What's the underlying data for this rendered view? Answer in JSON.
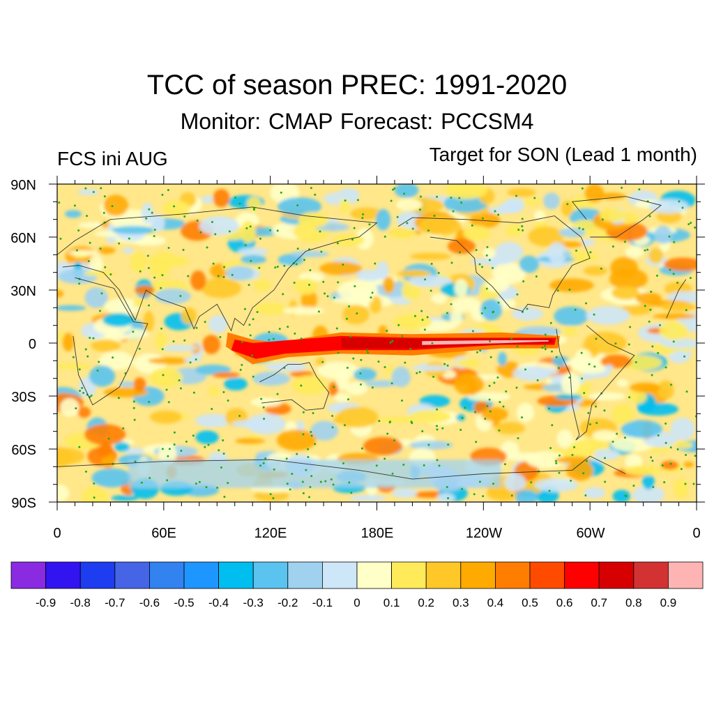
{
  "title": "TCC of season PREC: 1991-2020",
  "subtitle": "Monitor: CMAP   Forecast: PCCSM4",
  "left_label": "FCS ini AUG",
  "right_label": "Target for SON (Lead 1 month)",
  "lat_labels": [
    "90N",
    "60N",
    "30N",
    "0",
    "30S",
    "60S",
    "90S"
  ],
  "lon_labels": [
    "0",
    "60E",
    "120E",
    "180E",
    "120W",
    "60W",
    "0"
  ],
  "colorbar": {
    "labels": [
      "-0.9",
      "-0.8",
      "-0.7",
      "-0.6",
      "-0.5",
      "-0.4",
      "-0.3",
      "-0.2",
      "-0.1",
      "0",
      "0.1",
      "0.2",
      "0.3",
      "0.4",
      "0.5",
      "0.6",
      "0.7",
      "0.8",
      "0.9"
    ],
    "colors": [
      "#8a2be2",
      "#3214f0",
      "#1e3cf0",
      "#4664e6",
      "#3282f0",
      "#1e96ff",
      "#00bef0",
      "#5ac3f0",
      "#a0d2f0",
      "#cde6f8",
      "#ffffc8",
      "#ffeb5a",
      "#ffc828",
      "#ffaa00",
      "#ff7d00",
      "#ff4b00",
      "#ff0000",
      "#d70000",
      "#d23232",
      "#ffb4b4"
    ]
  },
  "stipple_color": "#22aa22",
  "coastline_color": "#333333"
}
